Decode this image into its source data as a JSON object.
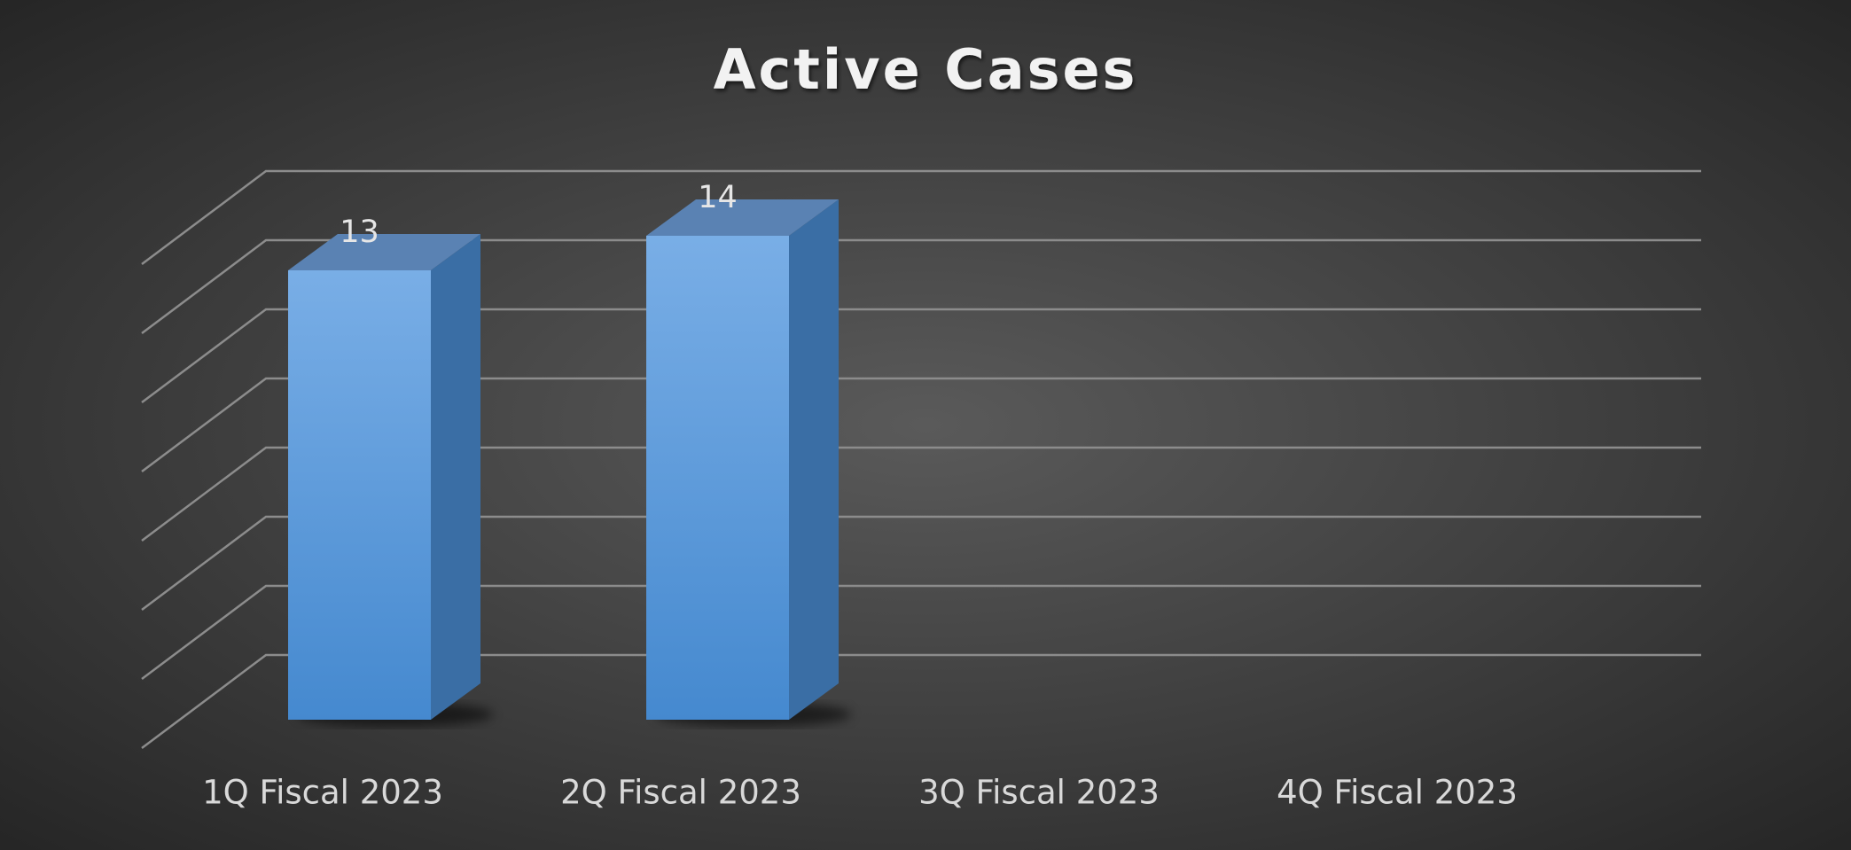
{
  "chart_data": {
    "type": "bar3d",
    "title": "Active Cases",
    "categories": [
      "1Q Fiscal 2023",
      "2Q Fiscal 2023",
      "3Q Fiscal 2023",
      "4Q Fiscal 2023"
    ],
    "values": [
      13,
      14,
      null,
      null
    ],
    "color": "#5b9bd5",
    "ylim": [
      0,
      14
    ],
    "yticks": [
      0,
      2,
      4,
      6,
      8,
      10,
      12,
      14
    ],
    "grid": true
  }
}
